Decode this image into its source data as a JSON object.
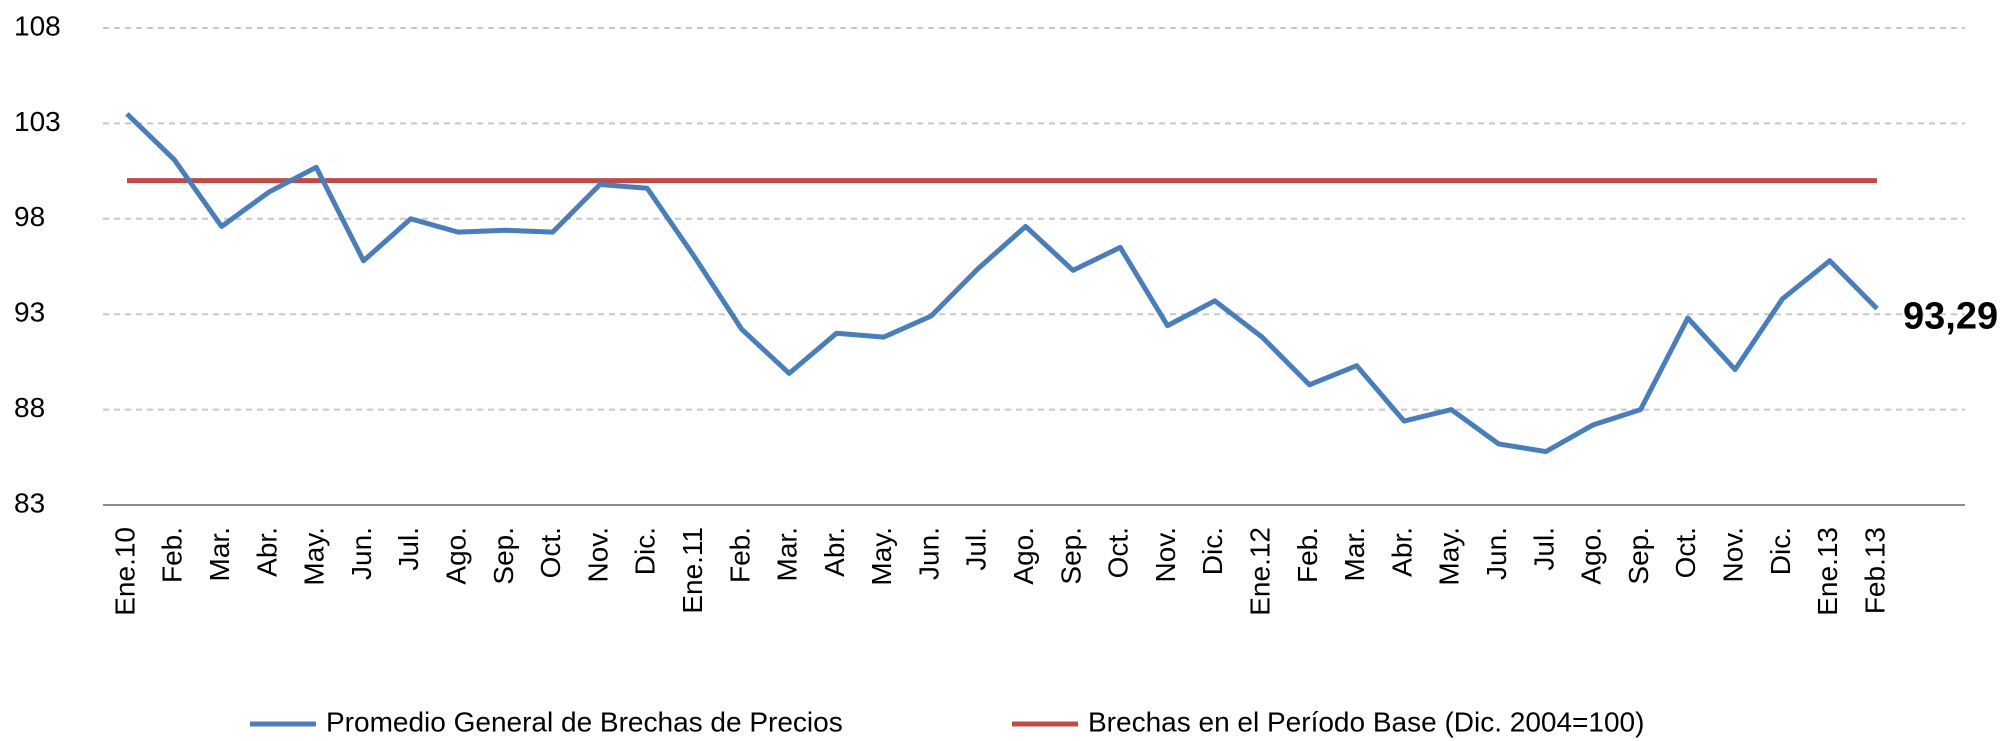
{
  "chart_data": {
    "type": "line",
    "categories": [
      "Ene.10",
      "Feb.",
      "Mar.",
      "Abr.",
      "May.",
      "Jun.",
      "Jul.",
      "Ago.",
      "Sep.",
      "Oct.",
      "Nov.",
      "Dic.",
      "Ene.11",
      "Feb.",
      "Mar.",
      "Abr.",
      "May.",
      "Jun.",
      "Jul.",
      "Ago.",
      "Sep.",
      "Oct.",
      "Nov.",
      "Dic.",
      "Ene.12",
      "Feb.",
      "Mar.",
      "Abr.",
      "May.",
      "Jun.",
      "Jul.",
      "Ago.",
      "Sep.",
      "Oct.",
      "Nov.",
      "Dic.",
      "Ene.13",
      "Feb.13"
    ],
    "series": [
      {
        "name": "Promedio General de Brechas de Precios",
        "color": "#4a7ebb",
        "values": [
          103.5,
          101.1,
          97.6,
          99.4,
          100.7,
          95.8,
          98.0,
          97.3,
          97.4,
          97.3,
          99.8,
          99.6,
          96.0,
          92.2,
          89.9,
          92.0,
          91.8,
          92.9,
          95.4,
          97.6,
          95.3,
          96.5,
          92.4,
          93.7,
          91.8,
          89.3,
          90.3,
          87.4,
          88.0,
          86.2,
          85.8,
          87.2,
          88.0,
          92.8,
          90.1,
          93.8,
          95.8,
          93.29
        ],
        "value_labels": [
          null,
          null,
          null,
          null,
          null,
          null,
          null,
          null,
          null,
          null,
          null,
          null,
          null,
          null,
          null,
          null,
          null,
          null,
          null,
          null,
          null,
          null,
          null,
          null,
          null,
          null,
          null,
          null,
          null,
          null,
          null,
          null,
          null,
          null,
          null,
          null,
          null,
          "93,29"
        ]
      },
      {
        "name": "Brechas en el Período Base (Dic. 2004=100)",
        "color": "#be4b48",
        "values": [
          100,
          100,
          100,
          100,
          100,
          100,
          100,
          100,
          100,
          100,
          100,
          100,
          100,
          100,
          100,
          100,
          100,
          100,
          100,
          100,
          100,
          100,
          100,
          100,
          100,
          100,
          100,
          100,
          100,
          100,
          100,
          100,
          100,
          100,
          100,
          100,
          100,
          100
        ]
      }
    ],
    "ylim": [
      83,
      108
    ],
    "yticks": [
      83,
      88,
      93,
      98,
      103,
      108
    ],
    "grid": true,
    "legend": "bottom"
  }
}
